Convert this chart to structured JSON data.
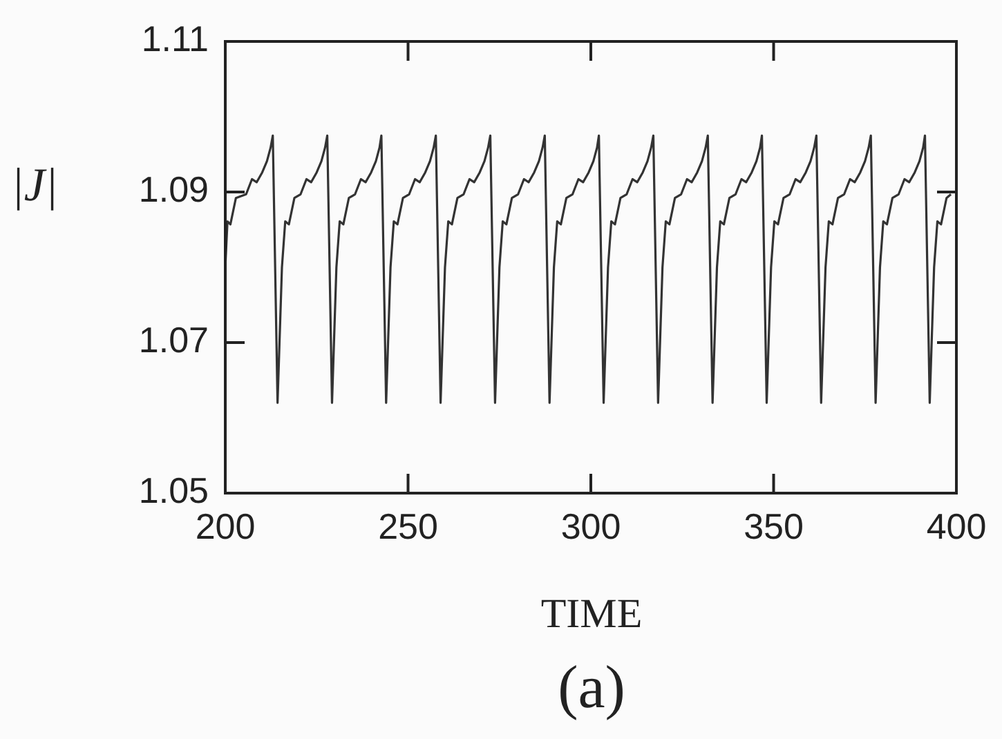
{
  "chart_data": {
    "type": "line",
    "xlabel": "TIME",
    "ylabel": "|J|",
    "annotations": [
      "(a)"
    ],
    "xlim": [
      200,
      400
    ],
    "xticks": [
      200,
      250,
      300,
      350,
      400
    ],
    "ylim": [
      1.05,
      1.11
    ],
    "yticks": [
      1.05,
      1.07,
      1.09,
      1.11
    ],
    "series": [
      {
        "color": "#333333",
        "x": [
          200.0,
          200.6,
          201.4,
          202.9,
          205.7,
          207.3,
          208.6,
          210.1,
          211.4,
          212.4,
          213.0,
          214.3,
          215.5,
          216.4,
          217.4,
          218.9,
          220.6,
          222.2,
          223.5,
          225.0,
          226.3,
          227.3,
          227.9,
          229.2,
          230.4,
          231.3,
          232.3,
          233.8,
          235.5,
          237.1,
          238.4,
          239.9,
          241.2,
          242.2,
          242.7,
          244.0,
          245.2,
          246.1,
          247.1,
          248.6,
          250.3,
          251.9,
          253.2,
          254.7,
          256.0,
          257.0,
          257.6,
          258.9,
          260.1,
          261.0,
          262.0,
          263.5,
          265.2,
          266.8,
          268.1,
          269.6,
          270.9,
          271.9,
          272.5,
          273.8,
          275.0,
          275.9,
          276.9,
          278.4,
          280.1,
          281.7,
          283.0,
          284.5,
          285.8,
          286.8,
          287.4,
          288.7,
          289.9,
          290.8,
          291.8,
          293.3,
          295.0,
          296.6,
          297.9,
          299.4,
          300.7,
          301.7,
          302.2,
          303.5,
          304.7,
          305.6,
          306.6,
          308.1,
          309.8,
          311.4,
          312.7,
          314.2,
          315.5,
          316.5,
          317.1,
          318.4,
          319.6,
          320.5,
          321.5,
          323.0,
          324.7,
          326.3,
          327.6,
          329.1,
          330.4,
          331.4,
          332.0,
          333.3,
          334.5,
          335.4,
          336.4,
          337.9,
          339.6,
          341.2,
          342.5,
          344.0,
          345.3,
          346.3,
          346.8,
          348.1,
          349.3,
          350.2,
          351.2,
          352.7,
          354.4,
          356.0,
          357.3,
          358.8,
          360.1,
          361.1,
          361.7,
          363.0,
          364.2,
          365.1,
          366.1,
          367.6,
          369.3,
          370.9,
          372.2,
          373.7,
          375.0,
          376.0,
          376.6,
          377.9,
          379.1,
          380.0,
          381.0,
          382.5,
          384.2,
          385.8,
          387.1,
          388.6,
          389.9,
          390.9,
          391.4,
          392.7,
          393.9,
          394.8,
          395.8,
          397.3,
          398.5
        ],
        "values": [
          1.08,
          1.0861,
          1.0857,
          1.0892,
          1.0897,
          1.0917,
          1.0913,
          1.0926,
          1.0941,
          1.0959,
          1.0975,
          1.062,
          1.08,
          1.0861,
          1.0857,
          1.0892,
          1.0897,
          1.0917,
          1.0913,
          1.0926,
          1.0941,
          1.0959,
          1.0975,
          1.062,
          1.08,
          1.0861,
          1.0857,
          1.0892,
          1.0897,
          1.0917,
          1.0913,
          1.0926,
          1.0941,
          1.0959,
          1.0975,
          1.062,
          1.08,
          1.0861,
          1.0857,
          1.0892,
          1.0897,
          1.0917,
          1.0913,
          1.0926,
          1.0941,
          1.0959,
          1.0975,
          1.062,
          1.08,
          1.0861,
          1.0857,
          1.0892,
          1.0897,
          1.0917,
          1.0913,
          1.0926,
          1.0941,
          1.0959,
          1.0975,
          1.062,
          1.08,
          1.0861,
          1.0857,
          1.0892,
          1.0897,
          1.0917,
          1.0913,
          1.0926,
          1.0941,
          1.0959,
          1.0975,
          1.062,
          1.08,
          1.0861,
          1.0857,
          1.0892,
          1.0897,
          1.0917,
          1.0913,
          1.0926,
          1.0941,
          1.0959,
          1.0975,
          1.062,
          1.08,
          1.0861,
          1.0857,
          1.0892,
          1.0897,
          1.0917,
          1.0913,
          1.0926,
          1.0941,
          1.0959,
          1.0975,
          1.062,
          1.08,
          1.0861,
          1.0857,
          1.0892,
          1.0897,
          1.0917,
          1.0913,
          1.0926,
          1.0941,
          1.0959,
          1.0975,
          1.062,
          1.08,
          1.0861,
          1.0857,
          1.0892,
          1.0897,
          1.0917,
          1.0913,
          1.0926,
          1.0941,
          1.0959,
          1.0975,
          1.062,
          1.08,
          1.0861,
          1.0857,
          1.0892,
          1.0897,
          1.0917,
          1.0913,
          1.0926,
          1.0941,
          1.0959,
          1.0975,
          1.062,
          1.08,
          1.0861,
          1.0857,
          1.0892,
          1.0897,
          1.0917,
          1.0913,
          1.0926,
          1.0941,
          1.0959,
          1.0975,
          1.062,
          1.08,
          1.0861,
          1.0857,
          1.0892,
          1.0897,
          1.0917,
          1.0913,
          1.0926,
          1.0941,
          1.0959,
          1.0975,
          1.062,
          1.08,
          1.0861,
          1.0857,
          1.0892,
          1.0897
        ]
      }
    ]
  }
}
